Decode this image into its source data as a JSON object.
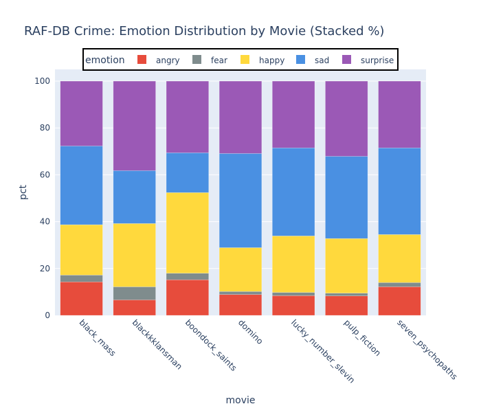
{
  "chart_data": {
    "type": "bar",
    "stacked": true,
    "title": "RAF-DB Crime: Emotion Distribution by Movie (Stacked %)",
    "xlabel": "movie",
    "ylabel": "pct",
    "ylim": [
      0,
      105
    ],
    "yticks": [
      0,
      20,
      40,
      60,
      80,
      100
    ],
    "grid": true,
    "legend_title": "emotion",
    "legend_placement": "top-center",
    "categories": [
      "black_mass",
      "blackkklansman",
      "boondock_saints",
      "domino",
      "lucky_number_slevin",
      "pulp_fiction",
      "seven_psychopaths"
    ],
    "series": [
      {
        "name": "angry",
        "color": "#e74c3c",
        "values": [
          14.3,
          6.6,
          15.2,
          8.9,
          8.4,
          8.3,
          12.2
        ]
      },
      {
        "name": "fear",
        "color": "#7f8c8d",
        "values": [
          2.9,
          5.6,
          2.8,
          1.3,
          1.4,
          1.2,
          1.8
        ]
      },
      {
        "name": "happy",
        "color": "#ffd93d",
        "values": [
          21.5,
          27.0,
          34.4,
          18.7,
          24.1,
          23.3,
          20.5
        ]
      },
      {
        "name": "sad",
        "color": "#4a90e2",
        "values": [
          33.6,
          22.6,
          17.0,
          40.2,
          37.6,
          35.1,
          37.0
        ]
      },
      {
        "name": "surprise",
        "color": "#9b59b6",
        "values": [
          27.7,
          38.2,
          30.6,
          30.9,
          28.5,
          32.1,
          28.5
        ]
      }
    ]
  }
}
